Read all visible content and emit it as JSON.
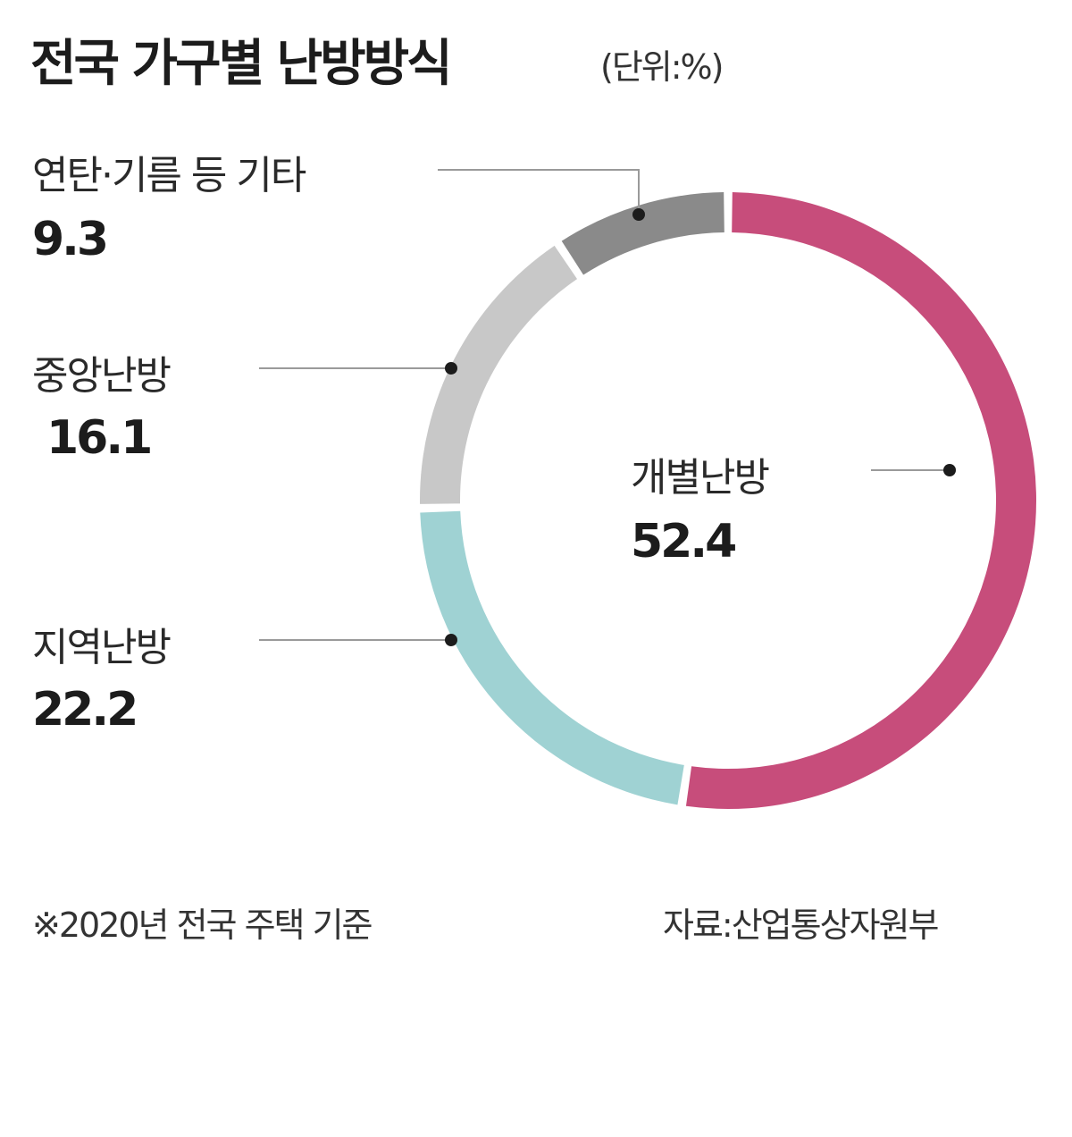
{
  "title": "전국 가구별 난방방식",
  "unit": "(단위:%)",
  "colors": {
    "개별난방": "#c74d7b",
    "지역난방": "#9fd2d3",
    "중앙난방": "#c8c8c8",
    "연탄·기름 등 기타": "#8a8a8a"
  },
  "chart_data": {
    "type": "pie",
    "style": "donut",
    "categories": [
      "개별난방",
      "지역난방",
      "중앙난방",
      "연탄·기름 등 기타"
    ],
    "values": [
      52.4,
      22.2,
      16.1,
      9.3
    ]
  },
  "labels": {
    "individual": {
      "name": "개별난방",
      "value": "52.4"
    },
    "district": {
      "name": "지역난방",
      "value": "22.2"
    },
    "central": {
      "name": "중앙난방",
      "value": "16.1"
    },
    "other": {
      "name": "연탄·기름 등 기타",
      "value": "9.3"
    }
  },
  "footnote": "※2020년 전국 주택 기준",
  "source": "자료:산업통상자원부"
}
